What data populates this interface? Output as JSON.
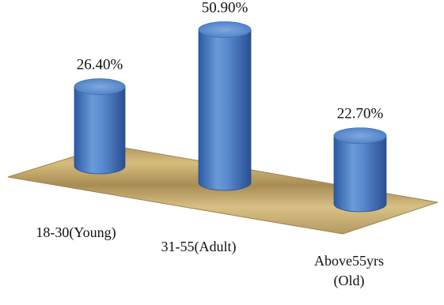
{
  "chart_data": {
    "type": "bar",
    "style": "3d-cylinder",
    "title": "",
    "xlabel": "",
    "ylabel": "",
    "categories": [
      [
        "18-30(Young)"
      ],
      [
        "31-55(Adult)"
      ],
      [
        "Above55yrs",
        "(Old)"
      ]
    ],
    "values": [
      26.4,
      50.9,
      22.7
    ],
    "data_labels": [
      "26.40%",
      "50.90%",
      "22.70%"
    ],
    "ylim": [
      0,
      60
    ],
    "colors": {
      "bar": "#4f82c6",
      "floor": "#c4a86a"
    }
  }
}
